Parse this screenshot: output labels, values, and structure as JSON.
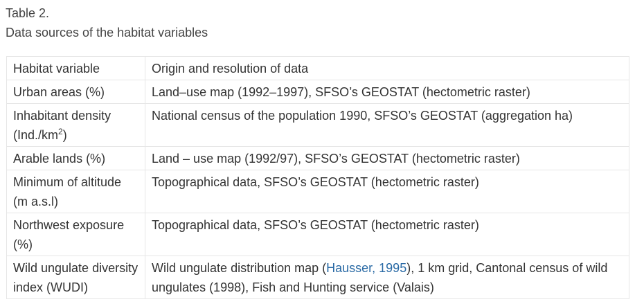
{
  "caption": {
    "label": "Table 2.",
    "title": "Data sources of the habitat variables"
  },
  "table": {
    "header": {
      "col1": "Habitat variable",
      "col2": "Origin and resolution of data"
    },
    "rows": [
      {
        "var": "Urban areas (%)",
        "source": "Land–use map (1992–1997), SFSO’s GEOSTAT (hectometric raster)"
      },
      {
        "var_pre": "Inhabitant density (Ind./km",
        "var_sup": "2",
        "var_post": ")",
        "source": "National census of the population 1990, SFSO’s GEOSTAT (aggregation ha)"
      },
      {
        "var": "Arable lands (%)",
        "source": "Land – use map (1992/97), SFSO’s GEOSTAT (hectometric raster)"
      },
      {
        "var": "Minimum of altitude (m a.s.l)",
        "source": "Topographical data, SFSO’s GEOSTAT (hectometric raster)"
      },
      {
        "var": "Northwest exposure (%)",
        "source": "Topographical data, SFSO’s GEOSTAT (hectometric raster)"
      },
      {
        "var": "Wild ungulate diversity index (WUDI)",
        "source_pre": "Wild ungulate distribution map (",
        "source_link": "Hausser, 1995",
        "source_post": "), 1 km grid, Cantonal census of wild ungulates (1998), Fish and Hunting service (Valais)"
      }
    ]
  }
}
